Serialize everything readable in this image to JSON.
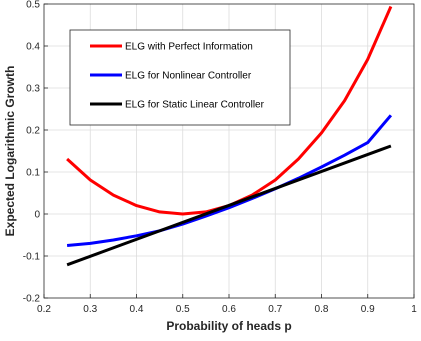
{
  "chart_data": {
    "type": "line",
    "title": "",
    "xlabel": "Probability of heads p",
    "ylabel": "Expected Logarithmic Growth",
    "xlim": [
      0.2,
      1
    ],
    "ylim": [
      -0.2,
      0.5
    ],
    "xticks": [
      "0.2",
      "0.3",
      "0.4",
      "0.5",
      "0.6",
      "0.7",
      "0.8",
      "0.9",
      "1"
    ],
    "yticks": [
      "-0.2",
      "-0.1",
      "0",
      "0.1",
      "0.2",
      "0.3",
      "0.4",
      "0.5"
    ],
    "grid": true,
    "legend_position": "top-left",
    "series": [
      {
        "name": "ELG with Perfect Information",
        "color": "#ff0000",
        "x": [
          0.25,
          0.3,
          0.35,
          0.4,
          0.45,
          0.5,
          0.55,
          0.6,
          0.65,
          0.7,
          0.75,
          0.8,
          0.85,
          0.9,
          0.95
        ],
        "y": [
          0.131,
          0.081,
          0.045,
          0.02,
          0.005,
          0.0,
          0.005,
          0.02,
          0.045,
          0.081,
          0.131,
          0.193,
          0.27,
          0.368,
          0.494
        ]
      },
      {
        "name": "ELG for Nonlinear Controller",
        "color": "#0000ff",
        "x": [
          0.25,
          0.3,
          0.35,
          0.4,
          0.45,
          0.5,
          0.55,
          0.6,
          0.65,
          0.7,
          0.75,
          0.8,
          0.85,
          0.9,
          0.95
        ],
        "y": [
          -0.075,
          -0.07,
          -0.062,
          -0.052,
          -0.04,
          -0.024,
          -0.005,
          0.015,
          0.037,
          0.06,
          0.085,
          0.112,
          0.14,
          0.17,
          0.235
        ]
      },
      {
        "name": "ELG for Static Linear Controller",
        "color": "#000000",
        "x": [
          0.25,
          0.95
        ],
        "y": [
          -0.121,
          0.162
        ]
      }
    ]
  }
}
